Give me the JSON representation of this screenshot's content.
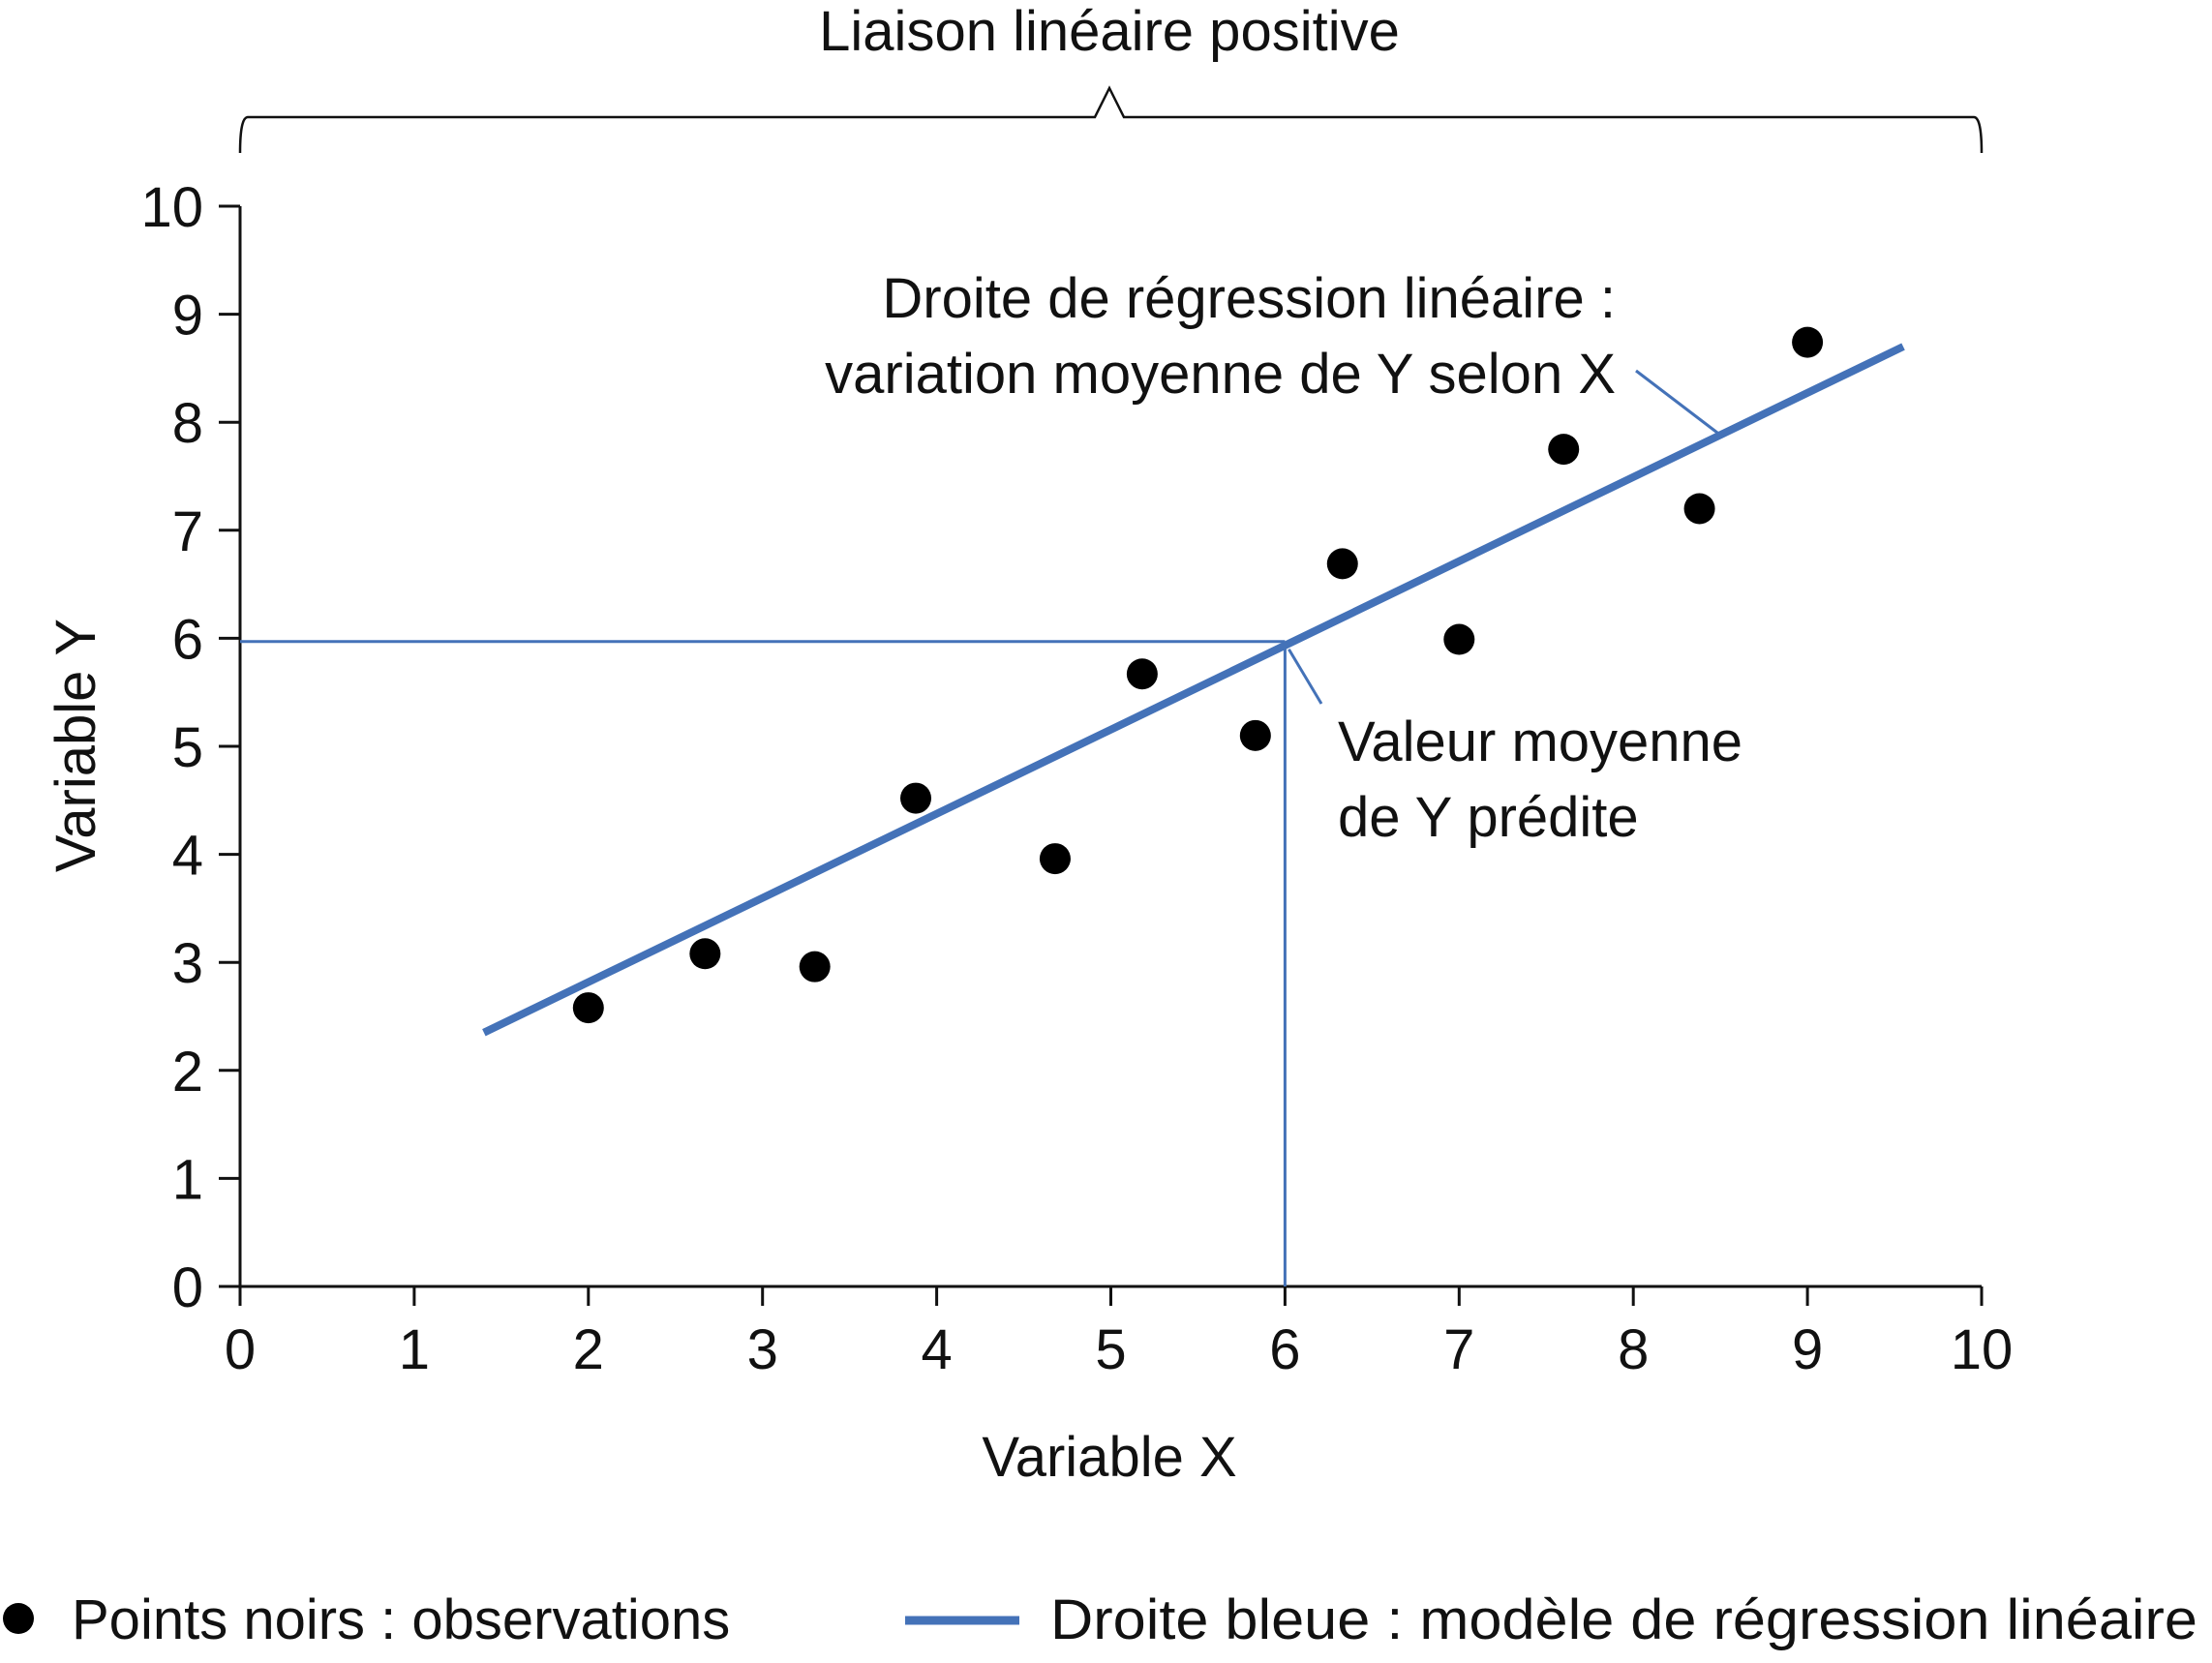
{
  "chart_data": {
    "type": "scatter",
    "title": "Liaison linéaire positive",
    "xlabel": "Variable X",
    "ylabel": "Variable Y",
    "xlim": [
      0,
      10
    ],
    "ylim": [
      0,
      10
    ],
    "x_ticks": [
      0,
      1,
      2,
      3,
      4,
      5,
      6,
      7,
      8,
      9,
      10
    ],
    "y_ticks": [
      0,
      1,
      2,
      3,
      4,
      5,
      6,
      7,
      8,
      9,
      10
    ],
    "grid": false,
    "series": [
      {
        "name": "Points noirs : observations",
        "type": "scatter",
        "color": "#000000",
        "x": [
          2.0,
          2.67,
          3.3,
          3.88,
          4.68,
          5.18,
          5.83,
          6.33,
          7.0,
          7.6,
          8.38,
          9.0
        ],
        "y": [
          2.58,
          3.08,
          2.96,
          4.52,
          3.96,
          5.67,
          5.1,
          6.69,
          5.99,
          7.75,
          7.2,
          8.74
        ]
      },
      {
        "name": "Droite bleue : modèle de régression linéaire",
        "type": "line",
        "color": "#4472b8",
        "x": [
          1.4,
          9.55
        ],
        "y": [
          2.35,
          8.7
        ]
      }
    ],
    "prediction": {
      "x": 6,
      "y": 5.97,
      "color": "#4472b8"
    },
    "annotations": [
      {
        "id": "regression",
        "lines": [
          "Droite de régression linéaire :",
          "variation moyenne de Y selon X"
        ]
      },
      {
        "id": "predicted",
        "lines": [
          "Valeur moyenne",
          "de Y prédite"
        ]
      }
    ],
    "legend": {
      "placement": "bottom",
      "items": [
        {
          "marker": "dot",
          "label": "Points noirs : observations"
        },
        {
          "marker": "line",
          "label": "Droite bleue : modèle de régression linéaire"
        }
      ]
    }
  }
}
